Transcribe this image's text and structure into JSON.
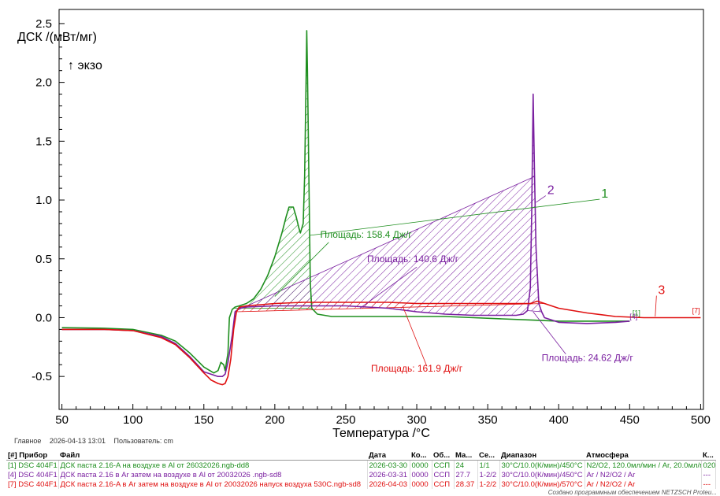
{
  "chart_data": {
    "type": "line",
    "ylabel": "ДСК /(мВт/мг)",
    "exo_label": "↑ экзо",
    "xlabel": "Температура /°C",
    "xlim": [
      48,
      502
    ],
    "ylim": [
      -0.78,
      2.62
    ],
    "x_ticks": [
      50,
      100,
      150,
      200,
      250,
      300,
      350,
      400,
      450,
      500
    ],
    "y_ticks": [
      -0.5,
      0.0,
      0.5,
      1.0,
      1.5,
      2.0,
      2.5
    ],
    "y_tick_labels": [
      "-0.5",
      "0.0",
      "0.5",
      "1.0",
      "1.5",
      "2.0",
      "2.5"
    ],
    "series": [
      {
        "label": "1",
        "color": "#1f8f1f",
        "x": [
          50,
          80,
          100,
          120,
          130,
          140,
          150,
          157,
          160,
          162,
          164,
          165,
          167,
          168,
          170,
          172,
          175,
          180,
          185,
          190,
          195,
          200,
          205,
          208,
          210,
          213,
          215,
          217,
          218,
          220,
          221,
          222,
          222.5,
          223,
          224,
          225,
          226,
          230,
          240,
          260,
          280,
          300,
          320,
          340,
          360,
          380,
          400,
          420,
          440,
          450
        ],
        "y": [
          -0.085,
          -0.09,
          -0.1,
          -0.15,
          -0.2,
          -0.3,
          -0.42,
          -0.47,
          -0.45,
          -0.38,
          -0.4,
          -0.45,
          -0.3,
          0.0,
          0.07,
          0.09,
          0.1,
          0.12,
          0.16,
          0.24,
          0.36,
          0.52,
          0.72,
          0.86,
          0.94,
          0.94,
          0.86,
          0.76,
          0.72,
          0.8,
          1.2,
          2.0,
          2.44,
          2.1,
          1.2,
          0.3,
          0.08,
          0.03,
          0.01,
          0.01,
          0.01,
          0.01,
          0.01,
          0.0,
          -0.01,
          -0.02,
          -0.03,
          -0.03,
          -0.03,
          -0.03
        ]
      },
      {
        "label": "2",
        "color": "#7a1fa0",
        "x": [
          50,
          80,
          100,
          120,
          130,
          140,
          150,
          160,
          163,
          165,
          167,
          170,
          172,
          175,
          180,
          200,
          220,
          250,
          280,
          300,
          320,
          340,
          360,
          370,
          375,
          378,
          380,
          381,
          382,
          383,
          384,
          386,
          388,
          390,
          395,
          400,
          420,
          440,
          450
        ],
        "y": [
          -0.1,
          -0.1,
          -0.11,
          -0.16,
          -0.22,
          -0.33,
          -0.46,
          -0.5,
          -0.5,
          -0.48,
          -0.38,
          -0.15,
          0.05,
          0.08,
          0.09,
          0.1,
          0.1,
          0.1,
          0.08,
          0.05,
          0.03,
          0.02,
          0.02,
          0.02,
          0.03,
          0.06,
          0.25,
          0.9,
          1.9,
          1.2,
          0.6,
          0.12,
          0.05,
          0.0,
          -0.02,
          -0.04,
          -0.05,
          -0.04,
          -0.03
        ]
      },
      {
        "label": "3",
        "color": "#e01010",
        "x": [
          50,
          80,
          100,
          120,
          130,
          140,
          150,
          155,
          160,
          163,
          165,
          167,
          169,
          171,
          173,
          175,
          180,
          190,
          200,
          220,
          240,
          260,
          280,
          300,
          320,
          340,
          360,
          370,
          380,
          385,
          390,
          400,
          420,
          440,
          460,
          480,
          500
        ],
        "y": [
          -0.1,
          -0.1,
          -0.11,
          -0.17,
          -0.23,
          -0.34,
          -0.47,
          -0.53,
          -0.56,
          -0.57,
          -0.56,
          -0.5,
          -0.35,
          -0.1,
          0.05,
          0.09,
          0.1,
          0.11,
          0.12,
          0.13,
          0.13,
          0.13,
          0.13,
          0.12,
          0.12,
          0.12,
          0.12,
          0.12,
          0.12,
          0.14,
          0.12,
          0.08,
          0.04,
          0.01,
          0.0,
          0.0,
          0.0
        ]
      }
    ],
    "annotations": [
      {
        "text": "Площадь: 158.4 Дж/г",
        "color": "#1f8f1f"
      },
      {
        "text": "Площадь: 140.6 Дж/г",
        "color": "#7a1fa0"
      },
      {
        "text": "Площадь: 24.62 Дж/г",
        "color": "#7a1fa0"
      },
      {
        "text": "Площадь: 161.9 Дж/г",
        "color": "#e01010"
      }
    ],
    "end_markers": [
      "[4]",
      "[1]",
      "[7]"
    ]
  },
  "footer": {
    "main_label": "Главное",
    "datetime": "2026-04-13 13:01",
    "user_label": "Пользователь: cm"
  },
  "table": {
    "headers": [
      "[#] Прибор",
      "Файл",
      "Дата",
      "Ко...",
      "Об...",
      "Ма...",
      "Се...",
      "Диапазон",
      "Атмосфера",
      "К..."
    ],
    "rows": [
      {
        "color": "#1f8f1f",
        "cells": [
          "[1] DSC 404F1",
          "ДСК паста 2.16-A  на воздухе в Al  от 26032026.ngb-dd8",
          "2026-03-30",
          "0000",
          "ССП",
          "24",
          "1/1",
          "30°C/10.0(К/мин)/450°C",
          "N2/O2, 120.0мл/мин / Ar, 20.0мл/мин",
          "020"
        ]
      },
      {
        "color": "#7a1fa0",
        "cells": [
          "[4] DSC 404F1",
          "ДСК паста 2.16  в Ar  затем на воздухе в Al  от 20032026   .ngb-sd8",
          "2026-03-31",
          "0000",
          "ССП",
          "27.7",
          "1-2/2",
          "30°C/10.0(К/мин)/450°C",
          "Ar / N2/O2 / Ar",
          "---"
        ]
      },
      {
        "color": "#e01010",
        "cells": [
          "[7] DSC 404F1",
          "ДСК паста 2.16-A  в Ar  затем на воздухе в Al  от 20032026 напуск воздуха 530C.ngb-sd8",
          "2026-04-03",
          "0000",
          "ССП",
          "28.37",
          "1-2/2",
          "30°C/10.0(К/мин)/570°C",
          "Ar / N2/O2 / Ar",
          "---"
        ]
      }
    ]
  },
  "credit": "Создано программным обеспечением NETZSCH Proteu..."
}
